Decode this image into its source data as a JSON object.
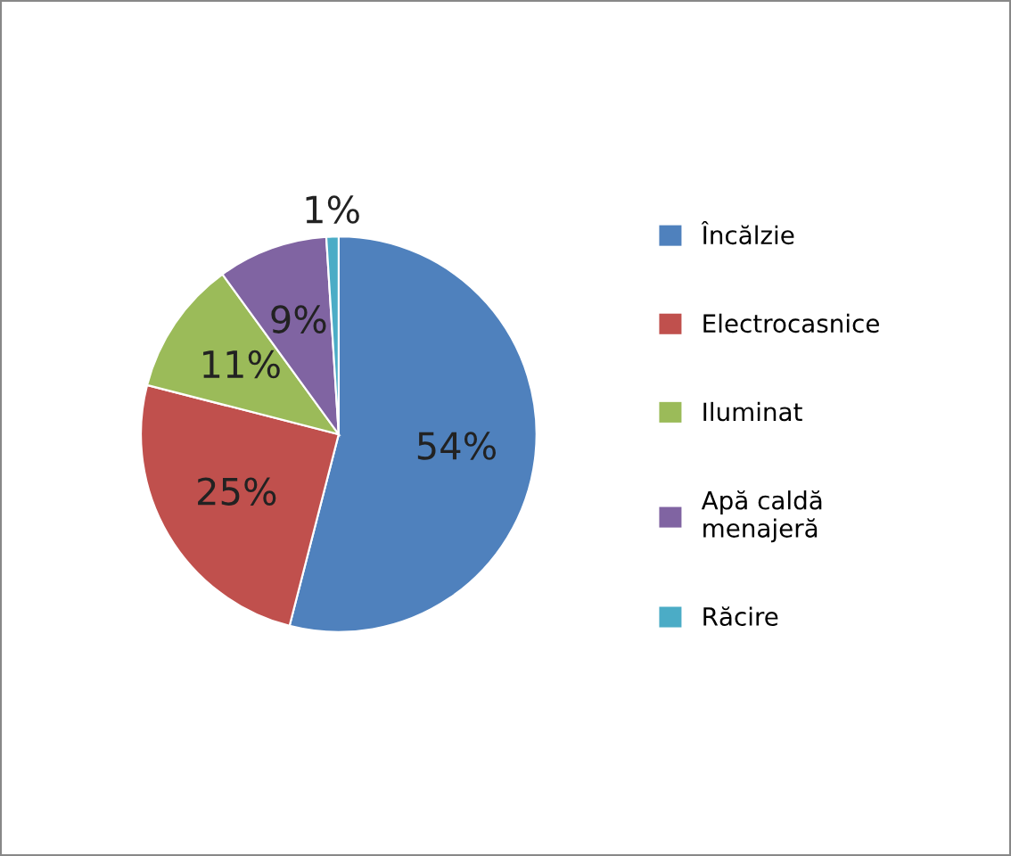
{
  "chart_data": {
    "type": "pie",
    "categories": [
      "Încălzie",
      "Electrocasnice",
      "Iluminat",
      "Apă caldă\nmenajeră",
      "Răcire"
    ],
    "values": [
      54,
      25,
      11,
      9,
      1
    ],
    "colors": [
      "#4f81bd",
      "#c0504d",
      "#9bbb59",
      "#8064a2",
      "#4bacc6"
    ],
    "value_labels": [
      "54%",
      "25%",
      "11%",
      "9%",
      "1%"
    ],
    "legend": "right"
  }
}
